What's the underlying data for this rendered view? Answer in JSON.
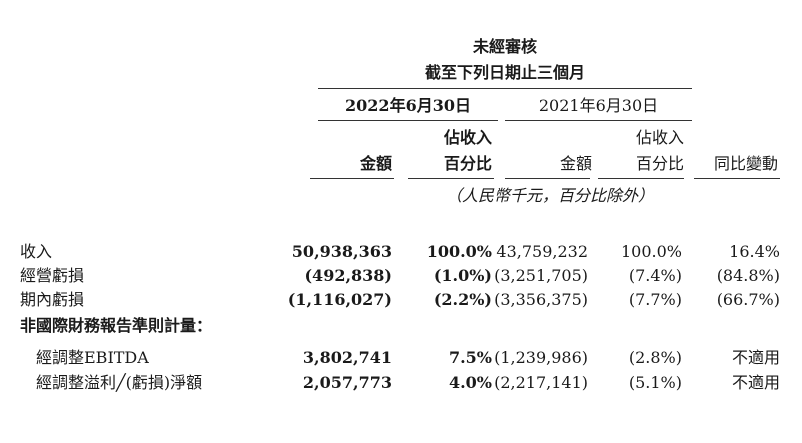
{
  "header": {
    "audit_status": "未經審核",
    "period": "截至下列日期止三個月",
    "year_current": "2022年6月30日",
    "year_prior": "2021年6月30日",
    "col_amount": "金額",
    "col_pct_line1": "佔收入",
    "col_pct_line2": "百分比",
    "col_change": "同比變動",
    "unit_note": "（人民幣千元，百分比除外）"
  },
  "rows": [
    {
      "label": "收入",
      "cur_amount": "50,938,363",
      "cur_pct": "100.0%",
      "prior_amount": "43,759,232",
      "prior_pct": "100.0%",
      "change": "16.4%"
    },
    {
      "label": "經營虧損",
      "cur_amount": "(492,838)",
      "cur_pct": "(1.0%)",
      "prior_amount": "(3,251,705)",
      "prior_pct": "(7.4%)",
      "change": "(84.8%)"
    },
    {
      "label": "期內虧損",
      "cur_amount": "(1,116,027)",
      "cur_pct": "(2.2%)",
      "prior_amount": "(3,356,375)",
      "prior_pct": "(7.7%)",
      "change": "(66.7%)"
    }
  ],
  "non_ifrs_heading": "非國際財務報告準則計量：",
  "non_ifrs_rows": [
    {
      "label": "經調整EBITDA",
      "cur_amount": "3,802,741",
      "cur_pct": "7.5%",
      "prior_amount": "(1,239,986)",
      "prior_pct": "(2.8%)",
      "change": "不適用"
    },
    {
      "label": "經調整溢利╱(虧損)淨額",
      "cur_amount": "2,057,773",
      "cur_pct": "4.0%",
      "prior_amount": "(2,217,141)",
      "prior_pct": "(5.1%)",
      "change": "不適用"
    }
  ]
}
